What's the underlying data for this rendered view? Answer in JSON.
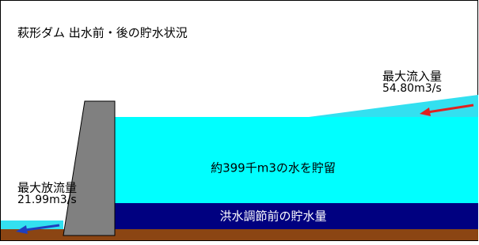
{
  "title": "萩形ダム 出水前・後の貯水状況",
  "inflow": {
    "label": "最大流入量",
    "rate": "54.80m3/s"
  },
  "outflow": {
    "label": "最大放流量",
    "rate": "21.99m3/s"
  },
  "stored": "約399千m3の水を貯留",
  "before": "洪水調節前の貯水量"
}
